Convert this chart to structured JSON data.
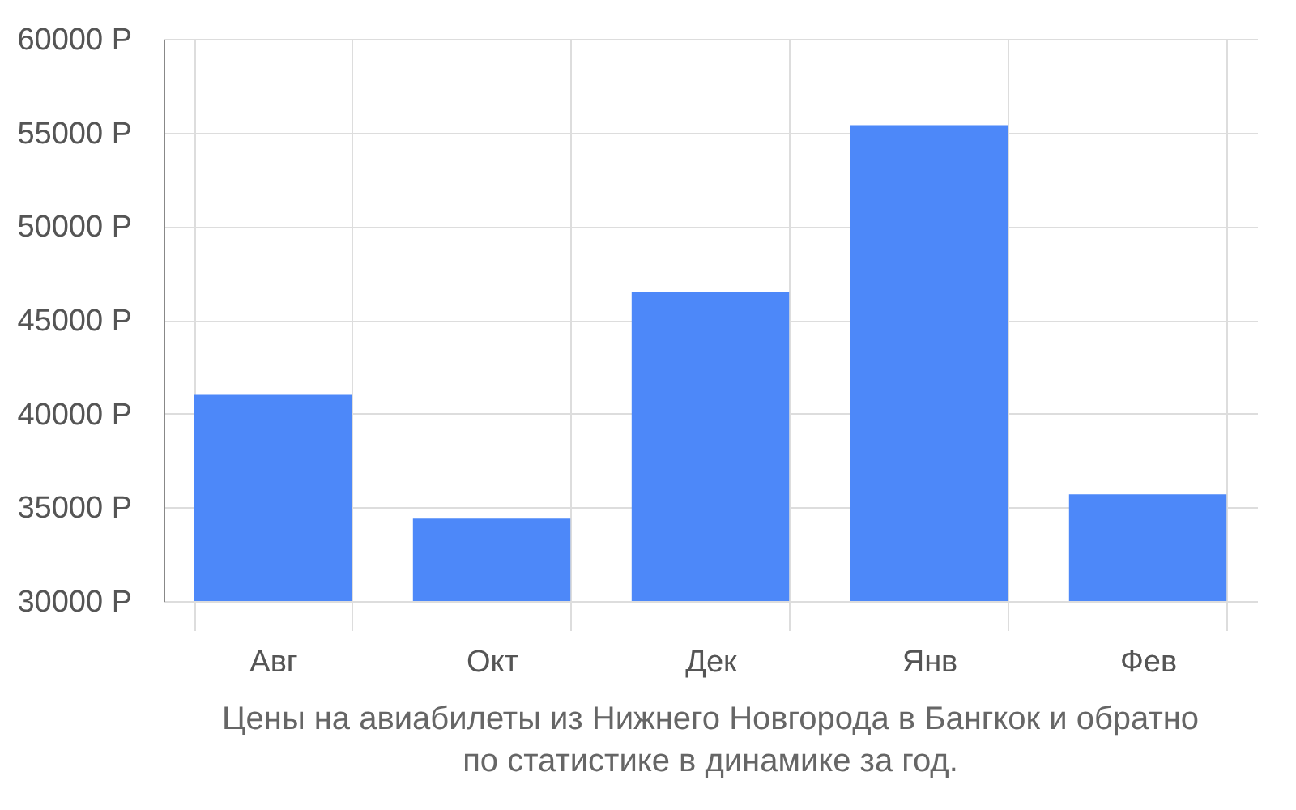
{
  "chart_data": {
    "type": "bar",
    "title": [
      "Цены на авиабилеты из Нижнего Новгорода в Бангкок и обратно",
      "по статистике в динамике за год."
    ],
    "categories": [
      "Авг",
      "Окт",
      "Дек",
      "Янв",
      "Фев"
    ],
    "values": [
      41000,
      34400,
      46500,
      55400,
      35700
    ],
    "color": "#4d88f9",
    "ylim": [
      30000,
      60000
    ],
    "yticks": [
      {
        "value": 30000,
        "label": "30000 Р"
      },
      {
        "value": 35000,
        "label": "35000 Р"
      },
      {
        "value": 40000,
        "label": "40000 Р"
      },
      {
        "value": 45000,
        "label": "45000 Р"
      },
      {
        "value": 50000,
        "label": "50000 Р"
      },
      {
        "value": 55000,
        "label": "55000 Р"
      },
      {
        "value": 60000,
        "label": "60000 Р"
      }
    ],
    "grid": true
  }
}
